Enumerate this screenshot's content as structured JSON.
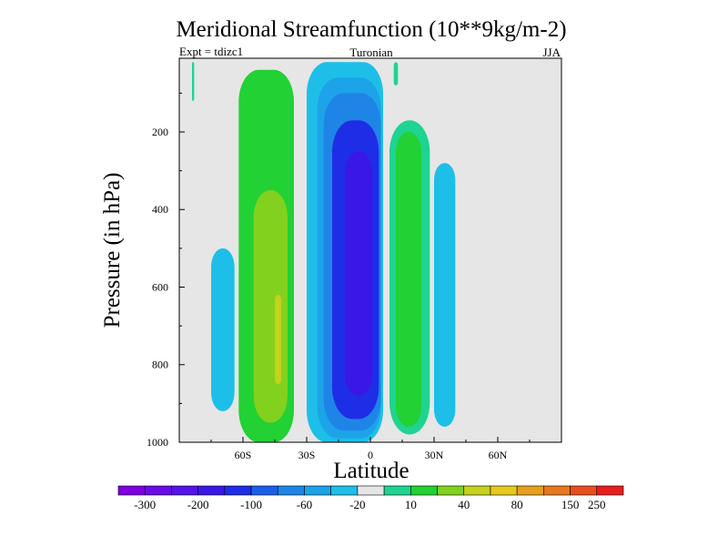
{
  "chart_data": {
    "type": "contour",
    "title": "Meridional Streamfunction (10**9kg/m-2)",
    "subtitle_left": "Expt = tdizc1",
    "subtitle_center": "Turonian",
    "subtitle_right": "JJA",
    "xlabel": "Latitude",
    "ylabel": "Pressure (in hPa)",
    "xlim": [
      -90,
      90
    ],
    "ylim": [
      1000,
      10
    ],
    "x_ticks": [
      {
        "value": -60,
        "label": "60S"
      },
      {
        "value": -30,
        "label": "30S"
      },
      {
        "value": 0,
        "label": "0"
      },
      {
        "value": 30,
        "label": "30N"
      },
      {
        "value": 60,
        "label": "60N"
      }
    ],
    "y_ticks": [
      {
        "value": 200,
        "label": "200"
      },
      {
        "value": 400,
        "label": "400"
      },
      {
        "value": 600,
        "label": "600"
      },
      {
        "value": 800,
        "label": "800"
      },
      {
        "value": 1000,
        "label": "1000"
      }
    ],
    "colorbar": {
      "colors": [
        "#7f00df",
        "#6a0ce6",
        "#5414e8",
        "#3a17e6",
        "#1e2ee6",
        "#1a5fe6",
        "#1e85e6",
        "#1da3e8",
        "#1dbfe8",
        "#e6e6e6",
        "#1ed490",
        "#22d133",
        "#82d11e",
        "#c4d11e",
        "#e6c81e",
        "#e6a01e",
        "#e6781e",
        "#e64e1e",
        "#e61e1e"
      ],
      "labels": [
        "-300",
        "-200",
        "-100",
        "-60",
        "-20",
        "10",
        "40",
        "80",
        "150",
        "250"
      ],
      "label_boundaries": [
        1,
        3,
        5,
        7,
        9,
        11,
        13,
        15,
        17,
        18
      ]
    },
    "cells": [
      {
        "name": "sh-outer-cell-left",
        "level": -20,
        "colorIndex": 8,
        "latitude": [
          -75,
          -64
        ],
        "pressure": [
          500,
          920
        ]
      },
      {
        "name": "sh-ferrel-cell-band",
        "level": 40,
        "colorIndex": 11,
        "latitude": [
          -62,
          -36
        ],
        "pressure": [
          40,
          1000
        ]
      },
      {
        "name": "sh-ferrel-cell-core",
        "level": 80,
        "colorIndex": 12,
        "latitude": [
          -55,
          -39
        ],
        "pressure": [
          350,
          950
        ]
      },
      {
        "name": "sh-ferrel-cell-peak",
        "level": 150,
        "colorIndex": 13,
        "latitude": [
          -45,
          -42
        ],
        "pressure": [
          620,
          850
        ]
      },
      {
        "name": "hadley-cell-band",
        "level": -20,
        "colorIndex": 8,
        "latitude": [
          -30,
          6
        ],
        "pressure": [
          20,
          1000
        ]
      },
      {
        "name": "hadley-cell-band-mid",
        "level": -60,
        "colorIndex": 7,
        "latitude": [
          -25,
          5
        ],
        "pressure": [
          60,
          990
        ]
      },
      {
        "name": "hadley-cell-band-inner",
        "level": -100,
        "colorIndex": 6,
        "latitude": [
          -22,
          5
        ],
        "pressure": [
          100,
          970
        ]
      },
      {
        "name": "hadley-cell-core",
        "level": -200,
        "colorIndex": 4,
        "latitude": [
          -18,
          4
        ],
        "pressure": [
          170,
          940
        ]
      },
      {
        "name": "hadley-cell-peak",
        "level": -300,
        "colorIndex": 3,
        "latitude": [
          -12,
          1
        ],
        "pressure": [
          250,
          880
        ]
      },
      {
        "name": "nh-ferrel-cell-band",
        "level": 10,
        "colorIndex": 10,
        "latitude": [
          9,
          28
        ],
        "pressure": [
          170,
          980
        ]
      },
      {
        "name": "nh-ferrel-cell-core",
        "level": 40,
        "colorIndex": 11,
        "latitude": [
          12,
          24
        ],
        "pressure": [
          200,
          960
        ]
      },
      {
        "name": "nh-outer-cell",
        "level": -20,
        "colorIndex": 8,
        "latitude": [
          30,
          40
        ],
        "pressure": [
          280,
          960
        ]
      },
      {
        "name": "polar-sliver",
        "level": 10,
        "colorIndex": 10,
        "latitude": [
          -84,
          -83
        ],
        "pressure": [
          20,
          120
        ]
      },
      {
        "name": "equatorial-sliver",
        "level": 10,
        "colorIndex": 10,
        "latitude": [
          11,
          13
        ],
        "pressure": [
          20,
          80
        ]
      }
    ]
  }
}
